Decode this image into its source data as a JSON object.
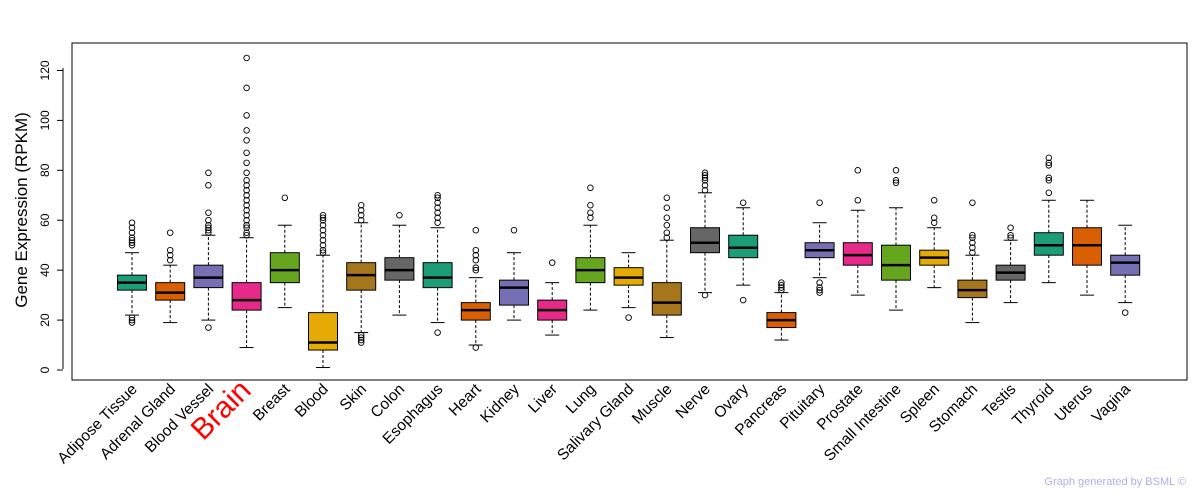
{
  "chart_data": {
    "type": "boxplot",
    "title": "",
    "xlabel": "",
    "ylabel": "Gene Expression (RPKM)",
    "ylim": [
      -4,
      131
    ],
    "yticks": [
      0,
      20,
      40,
      60,
      80,
      100,
      120
    ],
    "highlighted_category": "Brain",
    "highlight_color": "#ff0000",
    "categories": [
      {
        "name": "Adipose Tissue",
        "color": "#1b9e77",
        "whisker_low": 22,
        "q1": 32,
        "median": 35,
        "q3": 38,
        "whisker_high": 47,
        "outliers": [
          19,
          20,
          21,
          50,
          51,
          52,
          53,
          55,
          57,
          59
        ]
      },
      {
        "name": "Adrenal Gland",
        "color": "#d95f02",
        "whisker_low": 19,
        "q1": 28,
        "median": 31,
        "q3": 35,
        "whisker_high": 42,
        "outliers": [
          44,
          46,
          48,
          55
        ]
      },
      {
        "name": "Blood Vessel",
        "color": "#7570b3",
        "whisker_low": 20,
        "q1": 33,
        "median": 37,
        "q3": 42,
        "whisker_high": 54,
        "outliers": [
          17,
          55,
          56,
          57,
          58,
          60,
          63,
          74,
          79
        ]
      },
      {
        "name": "Brain",
        "color": "#e7298a",
        "whisker_low": 9,
        "q1": 24,
        "median": 28,
        "q3": 35,
        "whisker_high": 53,
        "outliers": [
          54,
          55,
          57,
          58,
          60,
          62,
          64,
          66,
          68,
          70,
          72,
          74,
          76,
          79,
          83,
          87,
          92,
          96,
          102,
          113,
          125
        ]
      },
      {
        "name": "Breast",
        "color": "#66a61e",
        "whisker_low": 25,
        "q1": 35,
        "median": 40,
        "q3": 47,
        "whisker_high": 58,
        "outliers": [
          69
        ]
      },
      {
        "name": "Blood",
        "color": "#e6ab02",
        "whisker_low": 1,
        "q1": 8,
        "median": 11,
        "q3": 23,
        "whisker_high": 46,
        "outliers": [
          47,
          48,
          50,
          52,
          54,
          56,
          58,
          60,
          61,
          62
        ]
      },
      {
        "name": "Skin",
        "color": "#a6761d",
        "whisker_low": 15,
        "q1": 32,
        "median": 38,
        "q3": 43,
        "whisker_high": 59,
        "outliers": [
          11,
          12,
          13,
          14,
          60,
          62,
          64,
          66
        ]
      },
      {
        "name": "Colon",
        "color": "#666666",
        "whisker_low": 22,
        "q1": 36,
        "median": 40,
        "q3": 45,
        "whisker_high": 58,
        "outliers": [
          62
        ]
      },
      {
        "name": "Esophagus",
        "color": "#1b9e77",
        "whisker_low": 19,
        "q1": 33,
        "median": 37,
        "q3": 43,
        "whisker_high": 57,
        "outliers": [
          15,
          59,
          61,
          63,
          65,
          67,
          69,
          70
        ]
      },
      {
        "name": "Heart",
        "color": "#d95f02",
        "whisker_low": 10,
        "q1": 20,
        "median": 24,
        "q3": 27,
        "whisker_high": 37,
        "outliers": [
          9,
          40,
          41,
          44,
          46,
          48,
          56
        ]
      },
      {
        "name": "Kidney",
        "color": "#7570b3",
        "whisker_low": 20,
        "q1": 26,
        "median": 33,
        "q3": 36,
        "whisker_high": 47,
        "outliers": [
          56
        ]
      },
      {
        "name": "Liver",
        "color": "#e7298a",
        "whisker_low": 14,
        "q1": 20,
        "median": 24,
        "q3": 28,
        "whisker_high": 35,
        "outliers": [
          43
        ]
      },
      {
        "name": "Lung",
        "color": "#66a61e",
        "whisker_low": 24,
        "q1": 35,
        "median": 40,
        "q3": 45,
        "whisker_high": 58,
        "outliers": [
          61,
          63,
          66,
          73
        ]
      },
      {
        "name": "Salivary Gland",
        "color": "#e6ab02",
        "whisker_low": 25,
        "q1": 34,
        "median": 37,
        "q3": 41,
        "whisker_high": 47,
        "outliers": [
          21
        ]
      },
      {
        "name": "Muscle",
        "color": "#a6761d",
        "whisker_low": 13,
        "q1": 22,
        "median": 27,
        "q3": 35,
        "whisker_high": 52,
        "outliers": [
          53,
          55,
          58,
          61,
          65,
          69
        ]
      },
      {
        "name": "Nerve",
        "color": "#666666",
        "whisker_low": 31,
        "q1": 47,
        "median": 51,
        "q3": 57,
        "whisker_high": 71,
        "outliers": [
          30,
          72,
          74,
          76,
          77,
          78,
          79
        ]
      },
      {
        "name": "Ovary",
        "color": "#1b9e77",
        "whisker_low": 34,
        "q1": 45,
        "median": 49,
        "q3": 54,
        "whisker_high": 65,
        "outliers": [
          28,
          67
        ]
      },
      {
        "name": "Pancreas",
        "color": "#d95f02",
        "whisker_low": 12,
        "q1": 17,
        "median": 20,
        "q3": 23,
        "whisker_high": 31,
        "outliers": [
          32,
          33,
          34,
          35
        ]
      },
      {
        "name": "Pituitary",
        "color": "#7570b3",
        "whisker_low": 37,
        "q1": 45,
        "median": 48,
        "q3": 51,
        "whisker_high": 59,
        "outliers": [
          31,
          32,
          33,
          35,
          67
        ]
      },
      {
        "name": "Prostate",
        "color": "#e7298a",
        "whisker_low": 30,
        "q1": 42,
        "median": 46,
        "q3": 51,
        "whisker_high": 64,
        "outliers": [
          68,
          80
        ]
      },
      {
        "name": "Small Intestine",
        "color": "#66a61e",
        "whisker_low": 24,
        "q1": 36,
        "median": 42,
        "q3": 50,
        "whisker_high": 65,
        "outliers": [
          75,
          76,
          80
        ]
      },
      {
        "name": "Spleen",
        "color": "#e6ab02",
        "whisker_low": 33,
        "q1": 42,
        "median": 45,
        "q3": 48,
        "whisker_high": 57,
        "outliers": [
          59,
          61,
          68
        ]
      },
      {
        "name": "Stomach",
        "color": "#a6761d",
        "whisker_low": 19,
        "q1": 29,
        "median": 32,
        "q3": 36,
        "whisker_high": 46,
        "outliers": [
          47,
          49,
          51,
          53,
          54,
          67
        ]
      },
      {
        "name": "Testis",
        "color": "#666666",
        "whisker_low": 27,
        "q1": 36,
        "median": 39,
        "q3": 42,
        "whisker_high": 52,
        "outliers": [
          53,
          54,
          57
        ]
      },
      {
        "name": "Thyroid",
        "color": "#1b9e77",
        "whisker_low": 35,
        "q1": 46,
        "median": 50,
        "q3": 55,
        "whisker_high": 68,
        "outliers": [
          71,
          76,
          77,
          82,
          83,
          85
        ]
      },
      {
        "name": "Uterus",
        "color": "#d95f02",
        "whisker_low": 30,
        "q1": 42,
        "median": 50,
        "q3": 57,
        "whisker_high": 68,
        "outliers": []
      },
      {
        "name": "Vagina",
        "color": "#7570b3",
        "whisker_low": 27,
        "q1": 38,
        "median": 43,
        "q3": 46,
        "whisker_high": 58,
        "outliers": [
          23
        ]
      }
    ]
  },
  "footer": {
    "credit": "Graph generated by BSML ©"
  }
}
